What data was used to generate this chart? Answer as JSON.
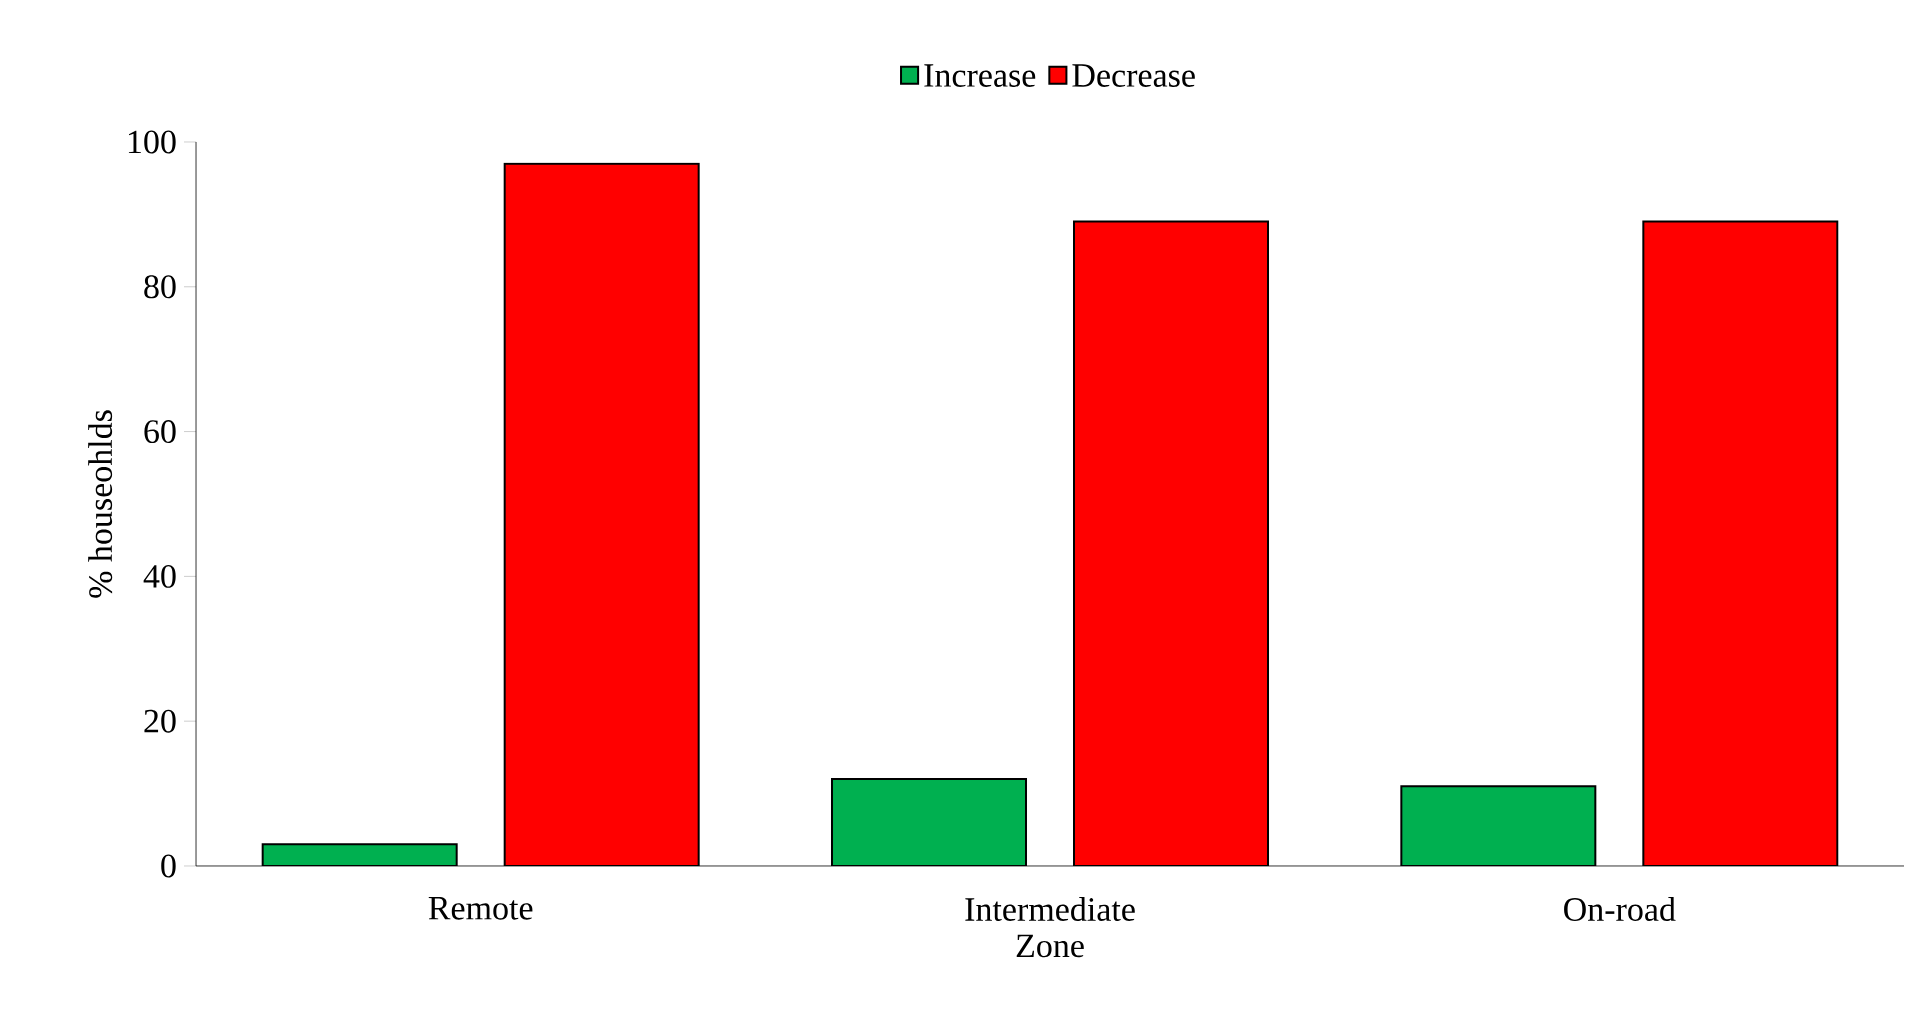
{
  "chart_data": {
    "type": "bar",
    "xlabel": "Zone",
    "ylabel": "% houseohlds",
    "categories": [
      "Remote",
      "Intermediate",
      "On-road"
    ],
    "series": [
      {
        "name": "Increase",
        "color": "#00b050",
        "values": [
          3,
          12,
          11
        ]
      },
      {
        "name": "Decrease",
        "color": "#ff0000",
        "values": [
          97,
          89,
          89
        ]
      }
    ],
    "ylim": [
      0,
      100
    ],
    "yticks": [
      0,
      20,
      40,
      60,
      80,
      100
    ],
    "legend": "top",
    "grid": false
  }
}
